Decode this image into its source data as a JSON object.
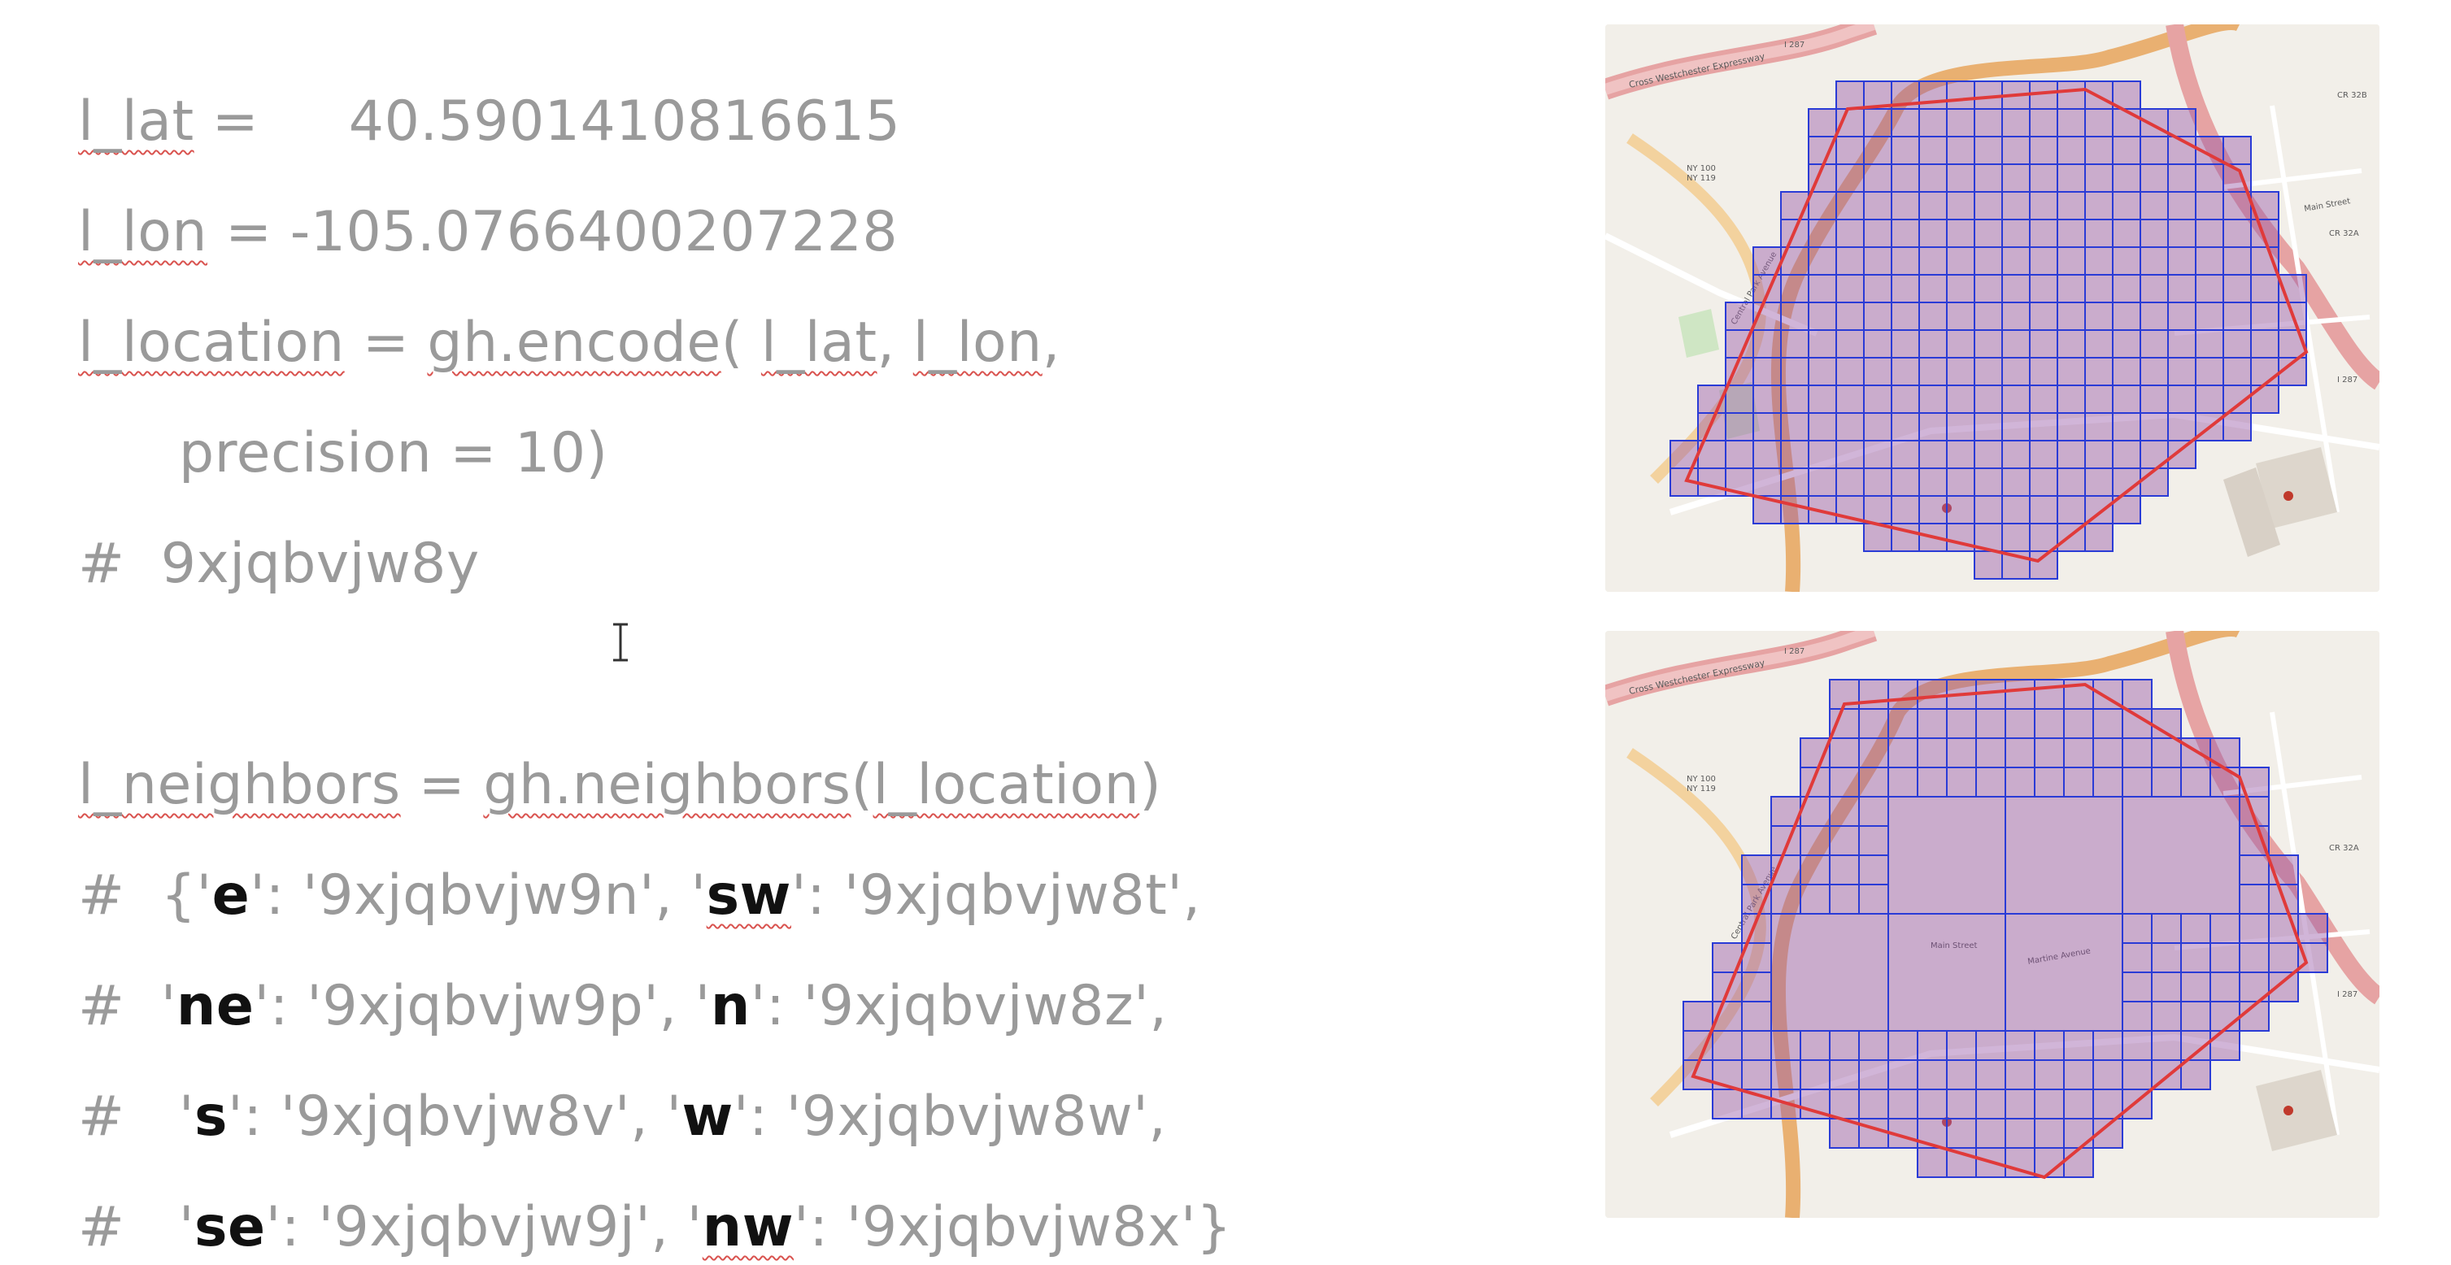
{
  "code": {
    "line1": {
      "var": "l_lat",
      "eq": " = ",
      "value": "    40.5901410816615"
    },
    "line2": {
      "var": "l_lon",
      "eq": " = ",
      "value": "-105.0766400207228"
    },
    "line3": {
      "var": "l_location",
      "eq": " = ",
      "fn": "gh.encode",
      "open": "( ",
      "a1": "l_lat",
      "sep": ", ",
      "a2": "l_lon",
      "tail": ","
    },
    "line4": {
      "text": "precision = 10)"
    },
    "line5": {
      "text": "#  9xjqbvjw8y"
    },
    "line6": {
      "var": "l_neighbors",
      "eq": " = ",
      "fn": "gh.neighbors",
      "open": "(",
      "arg": "l_location",
      "close": ")"
    },
    "line7": {
      "pre": "#  {'",
      "k1": "e",
      "m1": "': '9xjqbvjw9n', '",
      "k2": "sw",
      "m2": "': '9xjqbvjw8t',"
    },
    "line8": {
      "pre": "#  '",
      "k1": "ne",
      "m1": "': '9xjqbvjw9p', '",
      "k2": "n",
      "m2": "': '9xjqbvjw8z',"
    },
    "line9": {
      "pre": "#   '",
      "k1": "s",
      "m1": "': '9xjqbvjw8v', '",
      "k2": "w",
      "m2": "': '9xjqbvjw8w',"
    },
    "line10": {
      "pre": "#   '",
      "k1": "se",
      "m1": "': '9xjqbvjw9j', '",
      "k2": "nw",
      "m2": "': '9xjqbvjw8x'}"
    }
  },
  "maps": {
    "top": {
      "labels": [
        "Cross Westchester Expressway",
        "I 287",
        "NY 100",
        "NY 119",
        "Main Street",
        "CR 32A",
        "CR 32B",
        "Central Park Avenue",
        "I 287"
      ]
    },
    "bottom": {
      "labels": [
        "Cross Westchester Expressway",
        "I 287",
        "NY 100",
        "NY 119",
        "Main Street",
        "Martine Avenue",
        "CR 32A",
        "Central Park Avenue",
        "I 287"
      ]
    }
  },
  "colors": {
    "grid": "#2a3bd6",
    "polygon": "#e03a3a",
    "fill": "#9a5aa8",
    "road": "#e9b071",
    "highway": "#d98a8a"
  }
}
